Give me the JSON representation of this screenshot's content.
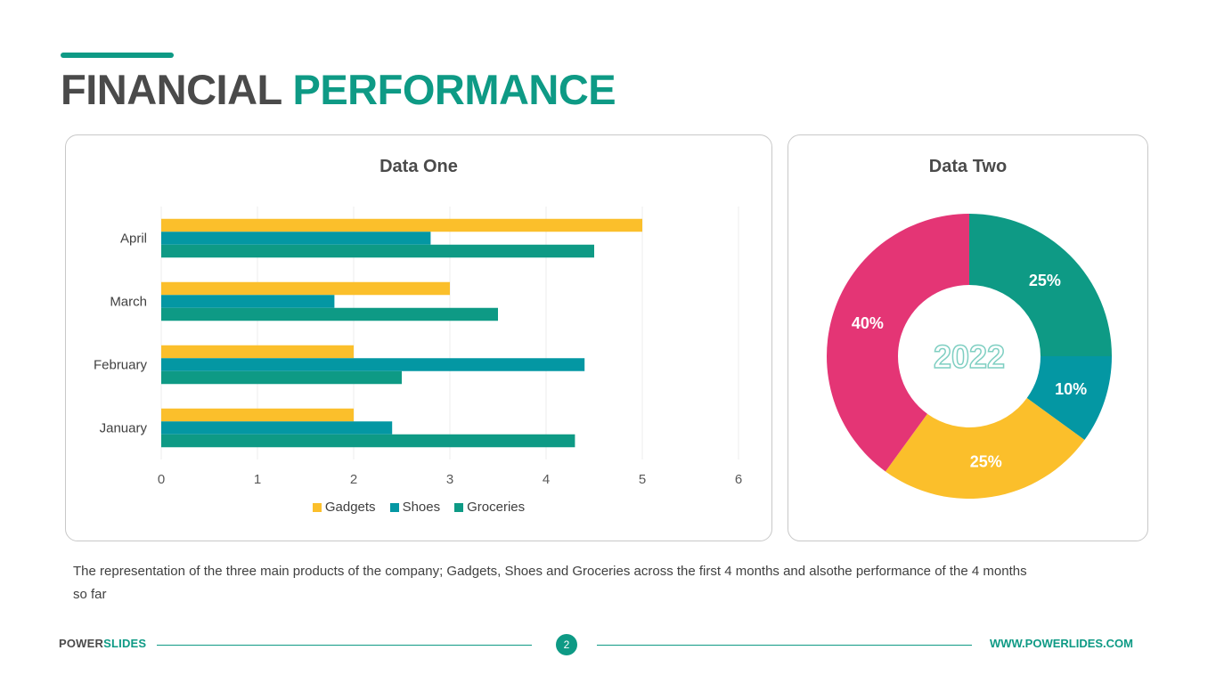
{
  "header": {
    "title_part1": "FINANCIAL",
    "title_part2": "PERFORMANCE"
  },
  "colors": {
    "accent": "#0e9a85",
    "gadgets": "#fbbf2b",
    "shoes": "#0497a3",
    "groceries": "#0e9a85",
    "pink": "#e43575",
    "dark_text": "#4a4a4a"
  },
  "chart_data": [
    {
      "type": "bar",
      "orientation": "horizontal",
      "title": "Data One",
      "categories": [
        "January",
        "February",
        "March",
        "April"
      ],
      "series": [
        {
          "name": "Gadgets",
          "values": [
            2,
            2,
            3,
            5
          ],
          "color": "#fbbf2b"
        },
        {
          "name": "Shoes",
          "values": [
            2.4,
            4.4,
            1.8,
            2.8
          ],
          "color": "#0497a3"
        },
        {
          "name": "Groceries",
          "values": [
            4.3,
            2.5,
            3.5,
            4.5
          ],
          "color": "#0e9a85"
        }
      ],
      "xlim": [
        0,
        6
      ],
      "xticks": [
        "0",
        "1",
        "2",
        "3",
        "4",
        "5",
        "6"
      ],
      "grid": true,
      "legend": "bottom"
    },
    {
      "type": "pie",
      "style": "donut",
      "title": "Data Two",
      "center_label": "2022",
      "slices": [
        {
          "label": "25%",
          "value": 25,
          "color": "#0e9a85"
        },
        {
          "label": "10%",
          "value": 10,
          "color": "#0497a3"
        },
        {
          "label": "25%",
          "value": 25,
          "color": "#fbbf2b"
        },
        {
          "label": "40%",
          "value": 40,
          "color": "#e43575"
        }
      ]
    }
  ],
  "caption": "The representation of the three main products of the company; Gadgets, Shoes and Groceries across the first 4 months and alsothe performance of the 4 months so far",
  "footer": {
    "brand_part1": "POWER",
    "brand_part2": "SLIDES",
    "page_number": "2",
    "url": "WWW.POWERLIDES.COM"
  }
}
